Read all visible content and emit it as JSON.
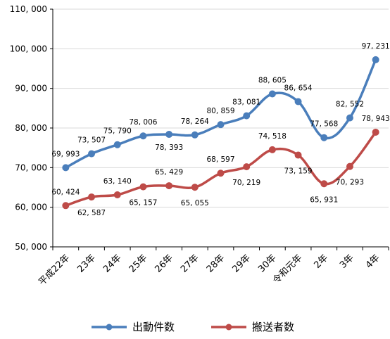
{
  "chart_data": {
    "type": "line",
    "categories": [
      "平成22年",
      "23年",
      "24年",
      "25年",
      "26年",
      "27年",
      "28年",
      "29年",
      "30年",
      "令和元年",
      "2年",
      "3年",
      "4年"
    ],
    "series": [
      {
        "name": "出動件数",
        "color": "#4a7ebb",
        "values": [
          69993,
          73507,
          75790,
          78006,
          78393,
          78264,
          80859,
          83081,
          88605,
          86654,
          77568,
          82552,
          97231
        ],
        "labels": [
          "69, 993",
          "73, 507",
          "75, 790",
          "78, 006",
          "78, 393",
          "78, 264",
          "80, 859",
          "83, 081",
          "88, 605",
          "86, 654",
          "77, 568",
          "82, 552",
          "97, 231"
        ]
      },
      {
        "name": "搬送者数",
        "color": "#be4b48",
        "values": [
          60424,
          62587,
          63140,
          65157,
          65429,
          65055,
          68597,
          70219,
          74518,
          73159,
          65931,
          70293,
          78943
        ],
        "labels": [
          "60, 424",
          "62, 587",
          "63, 140",
          "65, 157",
          "65, 429",
          "65, 055",
          "68, 597",
          "70, 219",
          "74, 518",
          "73, 159",
          "65, 931",
          "70, 293",
          "78, 943"
        ]
      }
    ],
    "ylim": [
      50000,
      110000
    ],
    "yticks": [
      "50, 000",
      "60, 000",
      "70, 000",
      "80, 000",
      "90, 000",
      "100, 000",
      "110, 000"
    ],
    "grid": true,
    "legend": "bottom"
  }
}
